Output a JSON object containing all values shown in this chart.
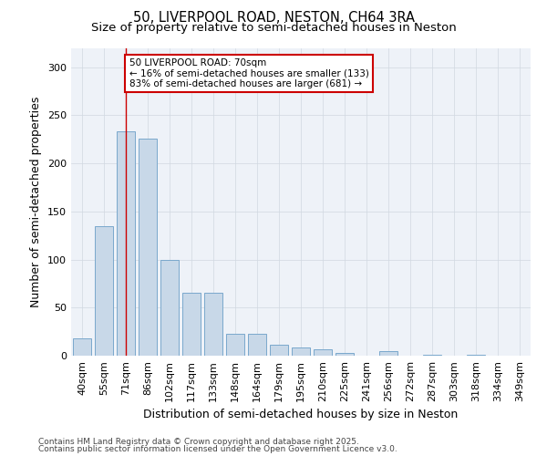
{
  "title_line1": "50, LIVERPOOL ROAD, NESTON, CH64 3RA",
  "title_line2": "Size of property relative to semi-detached houses in Neston",
  "xlabel": "Distribution of semi-detached houses by size in Neston",
  "ylabel": "Number of semi-detached properties",
  "categories": [
    "40sqm",
    "55sqm",
    "71sqm",
    "86sqm",
    "102sqm",
    "117sqm",
    "133sqm",
    "148sqm",
    "164sqm",
    "179sqm",
    "195sqm",
    "210sqm",
    "225sqm",
    "241sqm",
    "256sqm",
    "272sqm",
    "287sqm",
    "303sqm",
    "318sqm",
    "334sqm",
    "349sqm"
  ],
  "values": [
    18,
    135,
    233,
    226,
    100,
    65,
    65,
    23,
    23,
    11,
    9,
    7,
    3,
    0,
    5,
    0,
    1,
    0,
    1,
    0,
    0
  ],
  "bar_color": "#c8d8e8",
  "bar_edge_color": "#7aa8cc",
  "red_line_x": 2,
  "annotation_text": "50 LIVERPOOL ROAD: 70sqm\n← 16% of semi-detached houses are smaller (133)\n83% of semi-detached houses are larger (681) →",
  "annotation_box_color": "#ffffff",
  "annotation_box_edge": "#cc0000",
  "ylim": [
    0,
    320
  ],
  "yticks": [
    0,
    50,
    100,
    150,
    200,
    250,
    300
  ],
  "grid_color": "#d0d8e0",
  "background_color": "#eef2f8",
  "footer_line1": "Contains HM Land Registry data © Crown copyright and database right 2025.",
  "footer_line2": "Contains public sector information licensed under the Open Government Licence v3.0.",
  "title_fontsize": 10.5,
  "subtitle_fontsize": 9.5,
  "axis_label_fontsize": 9,
  "tick_fontsize": 8,
  "annotation_fontsize": 7.5,
  "footer_fontsize": 6.5
}
